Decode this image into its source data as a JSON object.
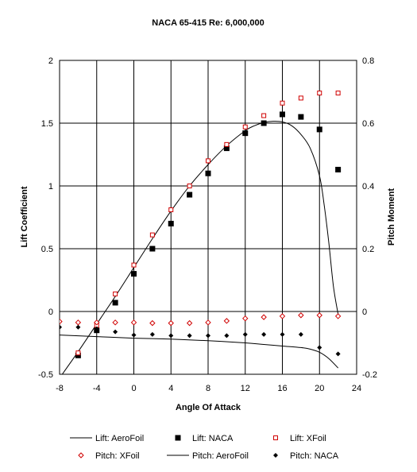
{
  "chart_data": {
    "type": "line",
    "title": "NACA 65-415 Re: 6,000,000",
    "xlabel": "Angle Of Attack",
    "ylabel": "Lift Coefficient",
    "y2label": "Pitch Moment",
    "xlim": [
      -8,
      24
    ],
    "ylim": [
      -0.5,
      2
    ],
    "y2lim": [
      -0.2,
      0.8
    ],
    "xticks": [
      "-8",
      "-4",
      "0",
      "4",
      "8",
      "12",
      "16",
      "20",
      "24"
    ],
    "yticks": [
      "-0.5",
      "0",
      "0.5",
      "1",
      "1.5",
      "2"
    ],
    "y2ticks": [
      "-0.2",
      "0",
      "0.2",
      "0.4",
      "0.6",
      "0.8"
    ],
    "grid": "vertical and horizontal major gridlines",
    "legend_position": "bottom",
    "series": [
      {
        "name": "Lift: AeroFoil",
        "axis": "left",
        "style": "line",
        "color": "#000000",
        "x": [
          -8,
          -6,
          -4,
          -2,
          0,
          2,
          4,
          6,
          8,
          10,
          12,
          13,
          14,
          15,
          16,
          17,
          18,
          19,
          20,
          20.5,
          21,
          21.5,
          22
        ],
        "y": [
          -0.53,
          -0.32,
          -0.1,
          0.12,
          0.35,
          0.58,
          0.8,
          1.0,
          1.17,
          1.32,
          1.44,
          1.48,
          1.505,
          1.515,
          1.51,
          1.48,
          1.41,
          1.3,
          1.08,
          0.85,
          0.55,
          0.2,
          -0.02
        ]
      },
      {
        "name": "Lift: NACA",
        "axis": "left",
        "style": "marker",
        "marker": "filled-square",
        "color": "#000000",
        "x": [
          -6,
          -4,
          -2,
          0,
          2,
          4,
          6,
          8,
          10,
          12,
          14,
          16,
          18,
          20,
          22
        ],
        "y": [
          -0.35,
          -0.15,
          0.07,
          0.3,
          0.5,
          0.7,
          0.93,
          1.1,
          1.3,
          1.42,
          1.5,
          1.57,
          1.55,
          1.45,
          1.13
        ]
      },
      {
        "name": "Lift: XFoil",
        "axis": "left",
        "style": "marker",
        "marker": "open-square",
        "color": "#d00000",
        "x": [
          -6,
          -4,
          -2,
          0,
          2,
          4,
          6,
          8,
          10,
          12,
          14,
          16,
          18,
          20,
          22
        ],
        "y": [
          -0.33,
          -0.11,
          0.14,
          0.37,
          0.61,
          0.81,
          1.0,
          1.2,
          1.33,
          1.47,
          1.56,
          1.66,
          1.7,
          1.74,
          1.74
        ]
      },
      {
        "name": "Pitch: XFoil",
        "axis": "right",
        "style": "marker",
        "marker": "open-diamond",
        "color": "#d00000",
        "x": [
          -8,
          -6,
          -4,
          -2,
          0,
          2,
          4,
          6,
          8,
          10,
          12,
          14,
          16,
          18,
          20,
          22
        ],
        "y": [
          -0.032,
          -0.035,
          -0.035,
          -0.035,
          -0.035,
          -0.037,
          -0.037,
          -0.037,
          -0.035,
          -0.03,
          -0.022,
          -0.018,
          -0.015,
          -0.012,
          -0.012,
          -0.015
        ]
      },
      {
        "name": "Pitch: AeroFoil",
        "axis": "right",
        "style": "line",
        "color": "#000000",
        "x": [
          -8,
          -4,
          0,
          4,
          8,
          12,
          14,
          16,
          18,
          19,
          20,
          21,
          22
        ],
        "y": [
          -0.075,
          -0.08,
          -0.085,
          -0.088,
          -0.093,
          -0.1,
          -0.105,
          -0.11,
          -0.115,
          -0.12,
          -0.13,
          -0.15,
          -0.18
        ]
      },
      {
        "name": "Pitch: NACA",
        "axis": "right",
        "style": "marker",
        "marker": "filled-diamond",
        "color": "#000000",
        "x": [
          -8,
          -6,
          -4,
          -2,
          0,
          2,
          4,
          6,
          8,
          10,
          12,
          14,
          16,
          18,
          20,
          22
        ],
        "y": [
          -0.05,
          -0.05,
          -0.055,
          -0.065,
          -0.075,
          -0.073,
          -0.077,
          -0.077,
          -0.077,
          -0.077,
          -0.073,
          -0.073,
          -0.073,
          -0.073,
          -0.115,
          -0.135
        ]
      }
    ]
  }
}
